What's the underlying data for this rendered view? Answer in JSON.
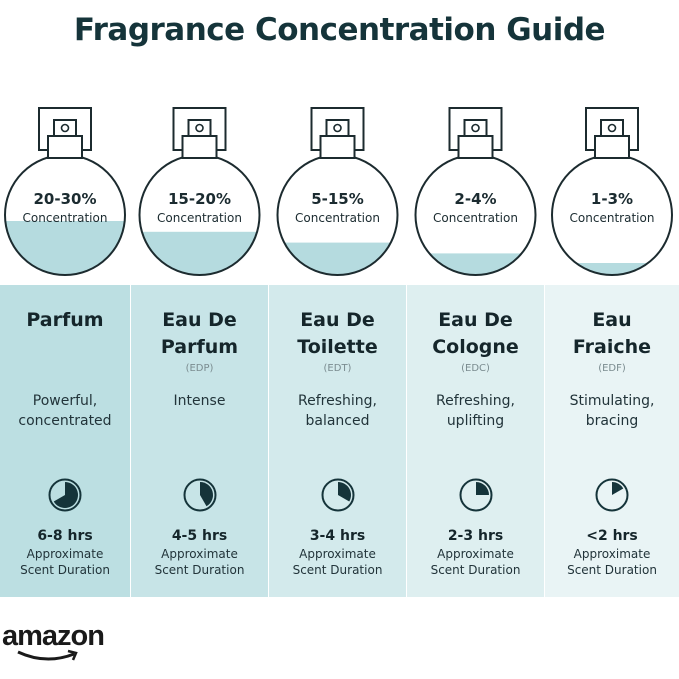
{
  "title": "Fragrance Concentration Guide",
  "colors": {
    "liquid": "#b5dbdf",
    "outline": "#1c2b2f",
    "panel_left": "#bcdfe2",
    "panel_right": "#e9f4f5",
    "clock_fill": "#15343a"
  },
  "concentration_label": "Concentration",
  "duration_label_1": "Approximate",
  "duration_label_2": "Scent Duration",
  "types": [
    {
      "percent": "20-30%",
      "fill_level": 0.45,
      "name_1": "Parfum",
      "name_2": "",
      "abbr": "",
      "desc_1": "Powerful,",
      "desc_2": "concentrated",
      "hours": "6-8 hrs",
      "clock_hours": 8
    },
    {
      "percent": "15-20%",
      "fill_level": 0.36,
      "name_1": "Eau De",
      "name_2": "Parfum",
      "abbr": "(EDP)",
      "desc_1": "Intense",
      "desc_2": "",
      "hours": "4-5 hrs",
      "clock_hours": 5
    },
    {
      "percent": "5-15%",
      "fill_level": 0.27,
      "name_1": "Eau De",
      "name_2": "Toilette",
      "abbr": "(EDT)",
      "desc_1": "Refreshing,",
      "desc_2": "balanced",
      "hours": "3-4 hrs",
      "clock_hours": 4
    },
    {
      "percent": "2-4%",
      "fill_level": 0.18,
      "name_1": "Eau De",
      "name_2": "Cologne",
      "abbr": "(EDC)",
      "desc_1": "Refreshing,",
      "desc_2": "uplifting",
      "hours": "2-3 hrs",
      "clock_hours": 3
    },
    {
      "percent": "1-3%",
      "fill_level": 0.1,
      "name_1": "Eau",
      "name_2": "Fraiche",
      "abbr": "(EDF)",
      "desc_1": "Stimulating,",
      "desc_2": "bracing",
      "hours": "<2 hrs",
      "clock_hours": 2
    }
  ],
  "logo": "amazon"
}
